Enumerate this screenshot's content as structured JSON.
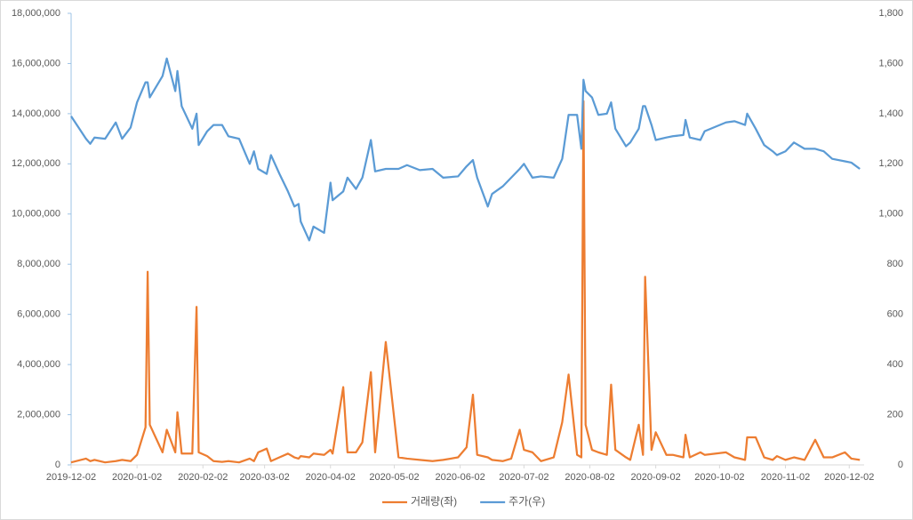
{
  "chart_data": {
    "type": "line",
    "x": [
      "2019-12-02",
      "2019-12-09",
      "2019-12-11",
      "2019-12-13",
      "2019-12-18",
      "2019-12-23",
      "2019-12-26",
      "2019-12-30",
      "2020-01-02",
      "2020-01-06",
      "2020-01-07",
      "2020-01-08",
      "2020-01-14",
      "2020-01-16",
      "2020-01-20",
      "2020-01-21",
      "2020-01-23",
      "2020-01-28",
      "2020-01-30",
      "2020-01-31",
      "2020-02-04",
      "2020-02-07",
      "2020-02-11",
      "2020-02-14",
      "2020-02-19",
      "2020-02-24",
      "2020-02-26",
      "2020-02-28",
      "2020-03-03",
      "2020-03-05",
      "2020-03-09",
      "2020-03-13",
      "2020-03-16",
      "2020-03-18",
      "2020-03-19",
      "2020-03-23",
      "2020-03-25",
      "2020-03-30",
      "2020-04-02",
      "2020-04-03",
      "2020-04-08",
      "2020-04-10",
      "2020-04-14",
      "2020-04-17",
      "2020-04-21",
      "2020-04-23",
      "2020-04-28",
      "2020-05-04",
      "2020-05-08",
      "2020-05-14",
      "2020-05-20",
      "2020-05-25",
      "2020-06-01",
      "2020-06-05",
      "2020-06-08",
      "2020-06-10",
      "2020-06-15",
      "2020-06-17",
      "2020-06-22",
      "2020-06-26",
      "2020-06-30",
      "2020-07-02",
      "2020-07-06",
      "2020-07-10",
      "2020-07-16",
      "2020-07-20",
      "2020-07-23",
      "2020-07-27",
      "2020-07-29",
      "2020-07-30",
      "2020-07-31",
      "2020-08-03",
      "2020-08-06",
      "2020-08-10",
      "2020-08-12",
      "2020-08-14",
      "2020-08-19",
      "2020-08-21",
      "2020-08-25",
      "2020-08-27",
      "2020-08-28",
      "2020-08-31",
      "2020-09-02",
      "2020-09-07",
      "2020-09-10",
      "2020-09-15",
      "2020-09-16",
      "2020-09-18",
      "2020-09-23",
      "2020-09-25",
      "2020-10-05",
      "2020-10-09",
      "2020-10-14",
      "2020-10-15",
      "2020-10-19",
      "2020-10-23",
      "2020-10-27",
      "2020-10-29",
      "2020-11-02",
      "2020-11-06",
      "2020-11-11",
      "2020-11-16",
      "2020-11-20",
      "2020-11-24",
      "2020-11-30",
      "2020-12-03",
      "2020-12-07"
    ],
    "series": [
      {
        "name": "거래량(좌)",
        "color": "#ed7d31",
        "axis": "y",
        "values": [
          100000,
          250000,
          150000,
          200000,
          100000,
          150000,
          200000,
          150000,
          400000,
          1500000,
          7700000,
          1600000,
          500000,
          1400000,
          500000,
          2100000,
          450000,
          450000,
          6300000,
          500000,
          350000,
          150000,
          120000,
          150000,
          100000,
          250000,
          150000,
          500000,
          650000,
          150000,
          300000,
          450000,
          300000,
          250000,
          350000,
          300000,
          450000,
          400000,
          600000,
          450000,
          3100000,
          500000,
          500000,
          900000,
          3700000,
          500000,
          4900000,
          300000,
          250000,
          200000,
          150000,
          200000,
          300000,
          700000,
          2800000,
          400000,
          300000,
          200000,
          150000,
          250000,
          1400000,
          600000,
          500000,
          150000,
          300000,
          1700000,
          3600000,
          400000,
          300000,
          14500000,
          1600000,
          600000,
          500000,
          400000,
          3200000,
          600000,
          300000,
          200000,
          1600000,
          400000,
          7500000,
          600000,
          1300000,
          400000,
          400000,
          300000,
          1200000,
          300000,
          500000,
          400000,
          500000,
          300000,
          200000,
          1100000,
          1100000,
          300000,
          200000,
          350000,
          200000,
          300000,
          200000,
          1000000,
          300000,
          300000,
          500000,
          250000,
          200000
        ]
      },
      {
        "name": "주가(우)",
        "color": "#5b9bd5",
        "axis": "y2",
        "values": [
          1390,
          1300,
          1280,
          1305,
          1300,
          1365,
          1300,
          1345,
          1445,
          1525,
          1525,
          1465,
          1550,
          1620,
          1490,
          1570,
          1430,
          1340,
          1400,
          1275,
          1330,
          1355,
          1355,
          1310,
          1300,
          1200,
          1250,
          1180,
          1160,
          1235,
          1160,
          1090,
          1030,
          1040,
          970,
          895,
          950,
          925,
          1125,
          1055,
          1090,
          1145,
          1100,
          1145,
          1295,
          1170,
          1180,
          1180,
          1195,
          1175,
          1180,
          1145,
          1150,
          1190,
          1215,
          1145,
          1030,
          1080,
          1110,
          1145,
          1180,
          1200,
          1145,
          1150,
          1145,
          1220,
          1395,
          1395,
          1260,
          1535,
          1490,
          1465,
          1395,
          1400,
          1445,
          1340,
          1270,
          1285,
          1340,
          1430,
          1430,
          1355,
          1295,
          1305,
          1310,
          1315,
          1375,
          1305,
          1295,
          1330,
          1365,
          1370,
          1355,
          1400,
          1340,
          1275,
          1250,
          1235,
          1250,
          1285,
          1260,
          1260,
          1250,
          1220,
          1210,
          1205,
          1180
        ]
      }
    ],
    "xlim": [
      "2019-12-02",
      "2020-12-09"
    ],
    "xticks": [
      "2019-12-02",
      "2020-01-02",
      "2020-02-02",
      "2020-03-02",
      "2020-04-02",
      "2020-05-02",
      "2020-06-02",
      "2020-07-02",
      "2020-08-02",
      "2020-09-02",
      "2020-10-02",
      "2020-11-02",
      "2020-12-02"
    ],
    "ylim": [
      0,
      18000000
    ],
    "yticks": [
      0,
      {
        "value": 2000000,
        "label": "2,000,000"
      },
      {
        "value": 4000000,
        "label": "4,000,000"
      },
      {
        "value": 6000000,
        "label": "6,000,000"
      },
      {
        "value": 8000000,
        "label": "8,000,000"
      },
      {
        "value": 10000000,
        "label": "10,000,000"
      },
      {
        "value": 12000000,
        "label": "12,000,000"
      },
      {
        "value": 14000000,
        "label": "14,000,000"
      },
      {
        "value": 16000000,
        "label": "16,000,000"
      },
      {
        "value": 18000000,
        "label": "18,000,000"
      }
    ],
    "y2lim": [
      0,
      1800
    ],
    "y2ticks": [
      0,
      200,
      400,
      600,
      800,
      {
        "value": 1000,
        "label": "1,000"
      },
      {
        "value": 1200,
        "label": "1,200"
      },
      {
        "value": 1400,
        "label": "1,400"
      },
      {
        "value": 1600,
        "label": "1,600"
      },
      {
        "value": 1800,
        "label": "1,800"
      }
    ],
    "legend": "bottom"
  }
}
